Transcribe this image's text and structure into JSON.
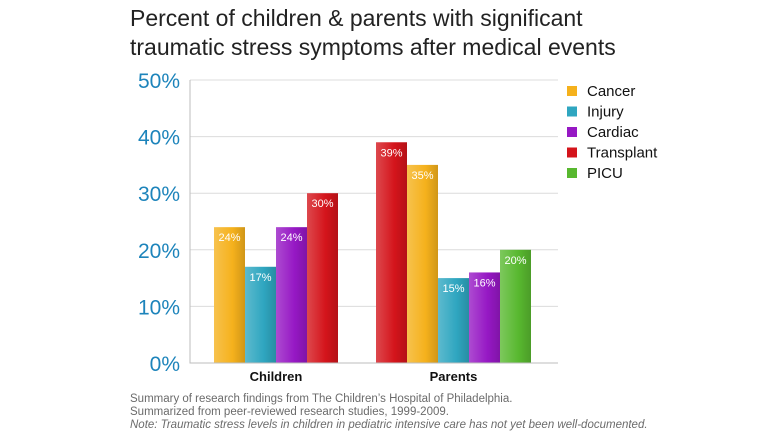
{
  "chart_data": {
    "type": "bar",
    "title": [
      "Percent of children & parents with significant",
      "traumatic stress symptoms after medical events"
    ],
    "categories": [
      "Children",
      "Parents"
    ],
    "yticks": [
      "0%",
      "10%",
      "20%",
      "30%",
      "40%",
      "50%"
    ],
    "ylim": [
      0,
      50
    ],
    "grid": true,
    "legend_position": "right",
    "legend": [
      {
        "name": "Cancer",
        "color": "#f5b11c"
      },
      {
        "name": "Injury",
        "color": "#2fa6c0"
      },
      {
        "name": "Cardiac",
        "color": "#9618c4"
      },
      {
        "name": "Transplant",
        "color": "#d4141b"
      },
      {
        "name": "PICU",
        "color": "#58b82f"
      }
    ],
    "groups": [
      {
        "category": "Children",
        "bars": [
          {
            "series": "Cancer",
            "value": 24,
            "label": "24%"
          },
          {
            "series": "Injury",
            "value": 17,
            "label": "17%"
          },
          {
            "series": "Cardiac",
            "value": 24,
            "label": "24%"
          },
          {
            "series": "Transplant",
            "value": 30,
            "label": "30%"
          }
        ]
      },
      {
        "category": "Parents",
        "bars": [
          {
            "series": "Transplant",
            "value": 39,
            "label": "39%"
          },
          {
            "series": "Cancer",
            "value": 35,
            "label": "35%"
          },
          {
            "series": "Injury",
            "value": 15,
            "label": "15%"
          },
          {
            "series": "Cardiac",
            "value": 16,
            "label": "16%"
          },
          {
            "series": "PICU",
            "value": 20,
            "label": "20%"
          }
        ]
      }
    ],
    "notes": [
      "Summary of research findings from The Children’s Hospital of Philadelphia.",
      "Summarized from peer-reviewed research studies, 1999-2009.",
      "Note: Traumatic stress levels in children in pediatric intensive care has not yet been well-documented."
    ]
  }
}
